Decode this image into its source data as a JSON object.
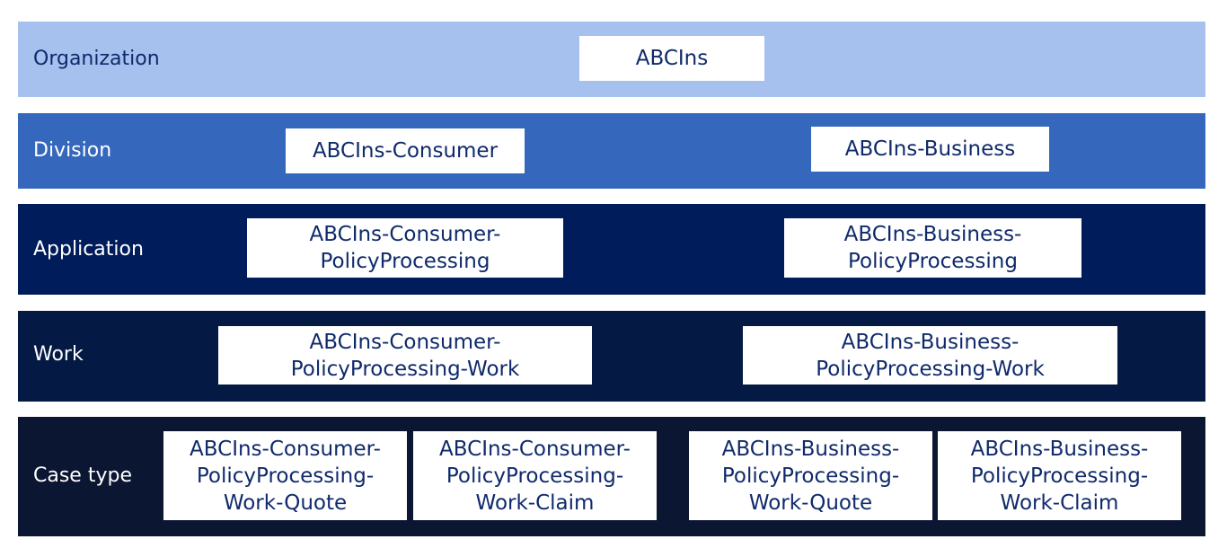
{
  "levels": {
    "organization": {
      "label": "Organization",
      "nodes": [
        {
          "line1": "ABCIns"
        }
      ]
    },
    "division": {
      "label": "Division",
      "nodes": [
        {
          "line1": "ABCIns-Consumer"
        },
        {
          "line1": "ABCIns-Business"
        }
      ]
    },
    "application": {
      "label": "Application",
      "nodes": [
        {
          "line1": "ABCIns-Consumer-",
          "line2": "PolicyProcessing"
        },
        {
          "line1": "ABCIns-Business-",
          "line2": "PolicyProcessing"
        }
      ]
    },
    "work": {
      "label": "Work",
      "nodes": [
        {
          "line1": "ABCIns-Consumer-",
          "line2": "PolicyProcessing-Work"
        },
        {
          "line1": "ABCIns-Business-",
          "line2": "PolicyProcessing-Work"
        }
      ]
    },
    "case_type": {
      "label": "Case type",
      "nodes": [
        {
          "line1": "ABCIns-Consumer-",
          "line2": "PolicyProcessing-",
          "line3": "Work-Quote"
        },
        {
          "line1": "ABCIns-Consumer-",
          "line2": "PolicyProcessing-",
          "line3": "Work-Claim"
        },
        {
          "line1": "ABCIns-Business-",
          "line2": "PolicyProcessing-",
          "line3": "Work-Quote"
        },
        {
          "line1": "ABCIns-Business-",
          "line2": "PolicyProcessing-",
          "line3": "Work-Claim"
        }
      ]
    }
  }
}
